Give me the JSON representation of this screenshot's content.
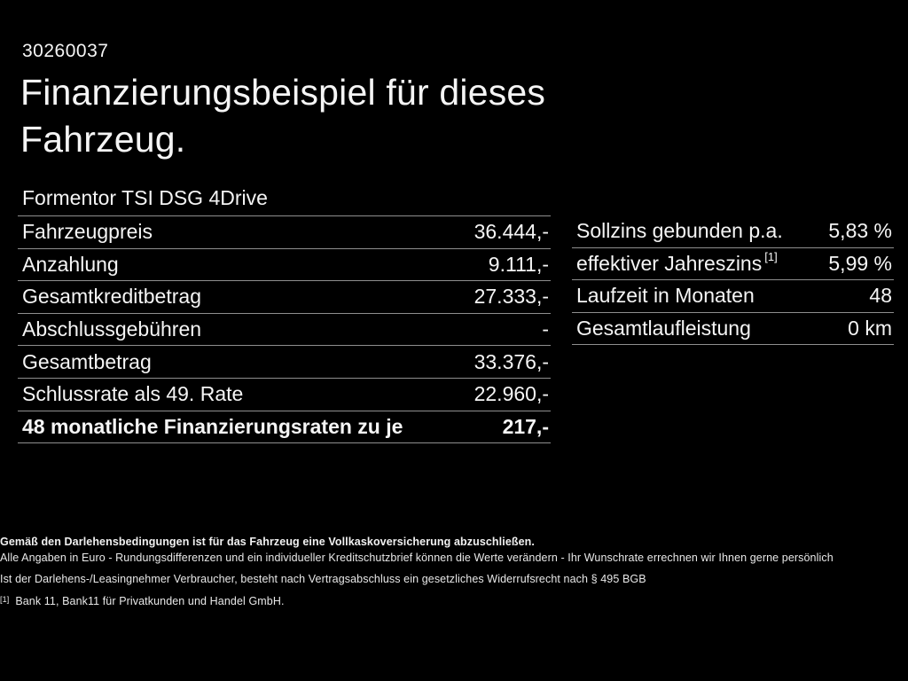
{
  "page": {
    "background_color": "#000000",
    "text_color": "#f5f5f5",
    "divider_color": "#8e8e8e"
  },
  "header": {
    "doc_number": "30260037",
    "title_line1": "Finanzierungsbeispiel für dieses",
    "title_line2": "Fahrzeug.",
    "vehicle_model": "Formentor TSI DSG 4Drive"
  },
  "finance_table_left": {
    "rows": [
      {
        "label": "Fahrzeugpreis",
        "value": "36.444,-"
      },
      {
        "label": "Anzahlung",
        "value": "9.111,-"
      },
      {
        "label": "Gesamtkreditbetrag",
        "value": "27.333,-"
      },
      {
        "label": "Abschlussgebühren",
        "value": "-"
      },
      {
        "label": "Gesamtbetrag",
        "value": "33.376,-"
      },
      {
        "label": "Schlussrate als 49. Rate",
        "value": "22.960,-"
      },
      {
        "label": "48 monatliche Finanzierungsraten zu je",
        "value": "217,-"
      }
    ]
  },
  "finance_table_right": {
    "rows": [
      {
        "label": "Sollzins gebunden p.a.",
        "label_sup": "",
        "value": "5,83 %"
      },
      {
        "label": "effektiver Jahreszins",
        "label_sup": "[1]",
        "value": "5,99 %"
      },
      {
        "label": "Laufzeit in Monaten",
        "label_sup": "",
        "value": "48"
      },
      {
        "label": "Gesamtlaufleistung",
        "label_sup": "",
        "value": "0 km"
      }
    ]
  },
  "footnotes": {
    "line1_bold": "Gemäß den Darlehensbedingungen ist für das Fahrzeug eine Vollkaskoversicherung abzuschließen.",
    "line2": "Alle Angaben in Euro - Rundungsdifferenzen und ein individueller Kreditschutzbrief können die Werte verändern - Ihr Wunschrate errechnen wir Ihnen gerne persönlich",
    "line3": "Ist der Darlehens-/Leasingnehmer Verbraucher, besteht nach Vertragsabschluss ein gesetzliches Widerrufsrecht nach § 495 BGB",
    "line4_marker": "[1]",
    "line4": "Bank 11, Bank11 für Privatkunden und Handel GmbH."
  }
}
